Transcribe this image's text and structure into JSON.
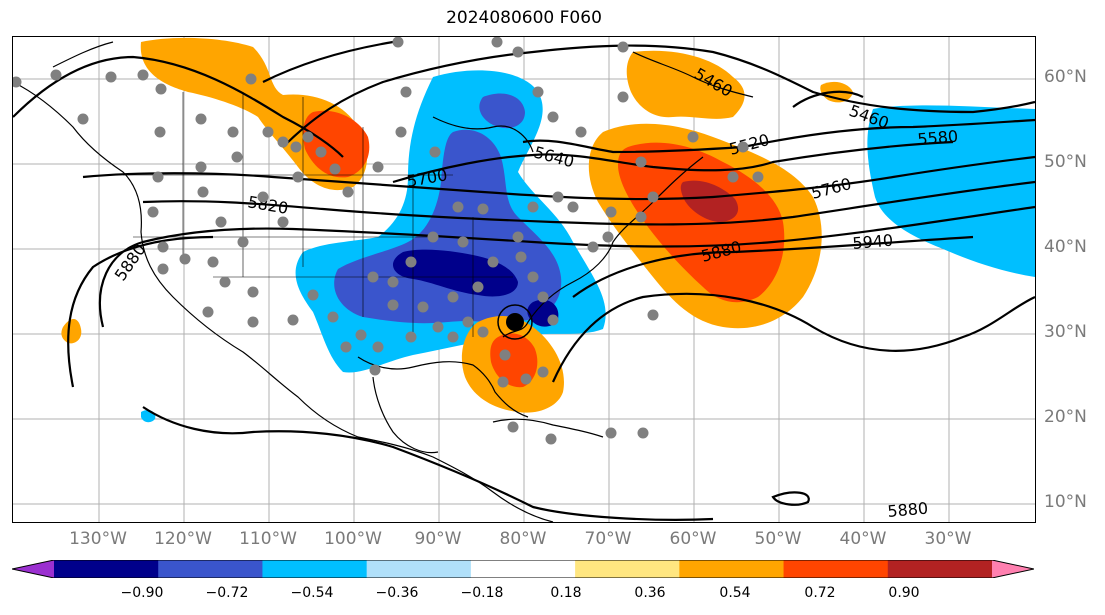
{
  "title": "2024080600 F060",
  "lat_labels": [
    "60°N",
    "50°N",
    "40°N",
    "30°N",
    "20°N",
    "10°N"
  ],
  "lon_labels": [
    "130°W",
    "120°W",
    "110°W",
    "100°W",
    "90°W",
    "80°W",
    "70°W",
    "60°W",
    "50°W",
    "40°W",
    "30°W"
  ],
  "contour_labels": [
    "5460",
    "5460",
    "5520",
    "5580",
    "5640",
    "5700",
    "5760",
    "5820",
    "5880",
    "5880",
    "5880",
    "5940"
  ],
  "colorbar": {
    "ticks": [
      "−0.90",
      "−0.72",
      "−0.54",
      "−0.36",
      "−0.18",
      "0.18",
      "0.36",
      "0.54",
      "0.72",
      "0.90"
    ],
    "colors": [
      "#9b30d0",
      "#00008b",
      "#3a55cc",
      "#00bfff",
      "#b0e0fa",
      "#ffffff",
      "#ffe680",
      "#ffa500",
      "#ff4500",
      "#b22222",
      "#ff80b0"
    ]
  },
  "map": {
    "extent": {
      "lon_min": -140,
      "lon_max": -20,
      "lat_min": 8,
      "lat_max": 65
    },
    "storm_center": {
      "lon": -80.5,
      "lat": 31.5
    }
  }
}
